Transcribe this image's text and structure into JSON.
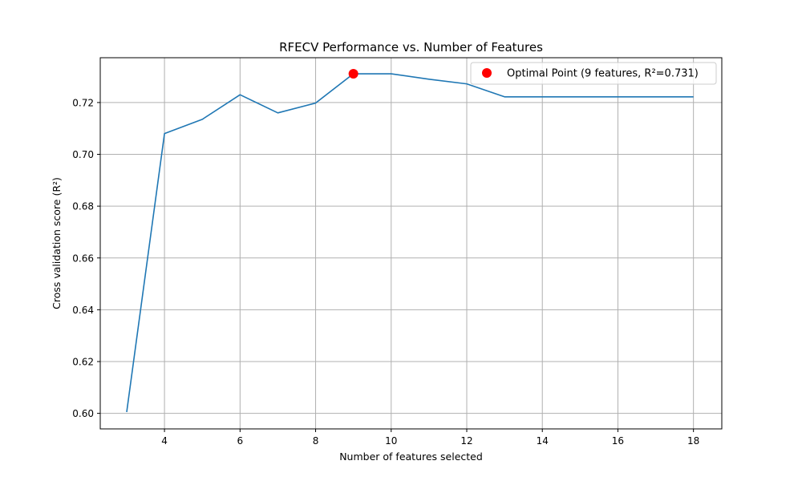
{
  "chart_data": {
    "type": "line",
    "title": "RFECV Performance vs. Number of Features",
    "xlabel": "Number of features selected",
    "ylabel": "Cross validation score (R²)",
    "xlim": [
      2.3,
      18.75
    ],
    "ylim": [
      0.594,
      0.7373
    ],
    "xticks": [
      4,
      6,
      8,
      10,
      12,
      14,
      16,
      18
    ],
    "yticks": [
      0.6,
      0.62,
      0.64,
      0.66,
      0.68,
      0.7,
      0.72
    ],
    "grid": true,
    "legend_position": "top-right",
    "series": [
      {
        "type": "line",
        "color": "#1f77b4",
        "x": [
          3,
          4,
          5,
          6,
          7,
          8,
          9,
          10,
          11,
          12,
          13,
          14,
          15,
          16,
          17,
          18
        ],
        "y": [
          0.6005,
          0.708,
          0.7135,
          0.723,
          0.716,
          0.7198,
          0.7311,
          0.7311,
          0.729,
          0.7272,
          0.7222,
          0.7222,
          0.7222,
          0.7222,
          0.7222,
          0.7222
        ]
      },
      {
        "type": "scatter",
        "name": "Optimal Point (9 features, R²=0.731)",
        "color": "#ff0000",
        "x": [
          9
        ],
        "y": [
          0.7311
        ]
      }
    ]
  }
}
